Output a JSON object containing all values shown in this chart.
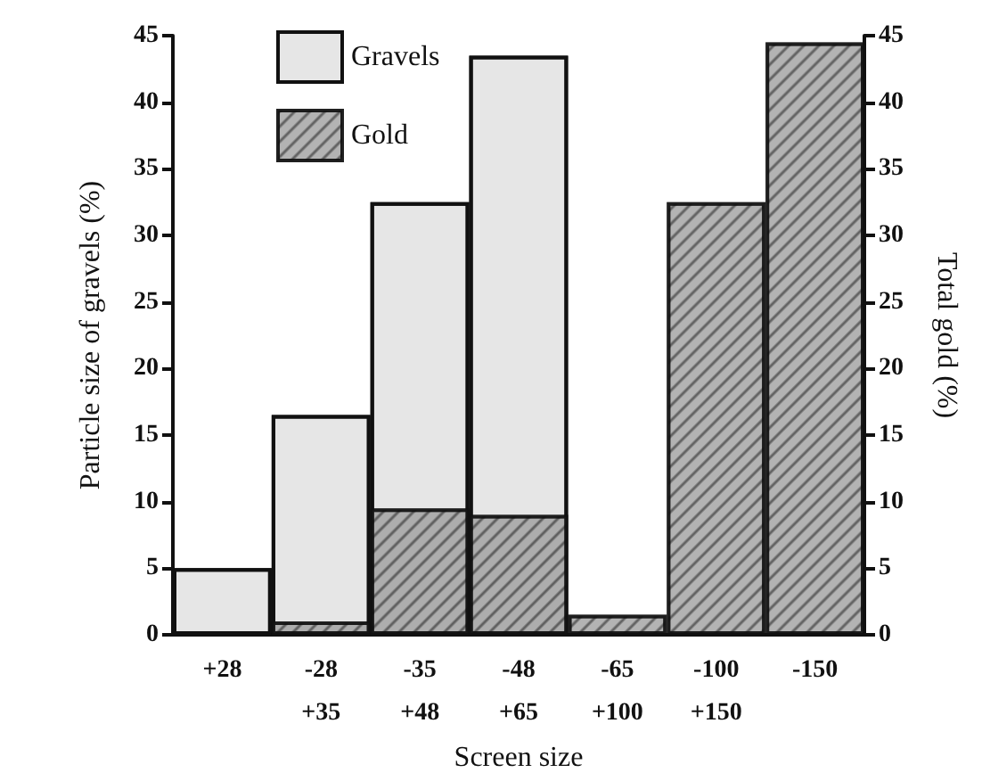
{
  "chart_data": {
    "type": "bar",
    "xlabel": "Screen size",
    "ylabel": "Particle size of gravels (%)",
    "y2label": "Total gold (%)",
    "categories": [
      "+28",
      "-28\n+35",
      "-35\n+48",
      "-48\n+65",
      "-65\n+100",
      "-100\n+150",
      "-150"
    ],
    "series": [
      {
        "name": "Gravels",
        "color": "#e6e6e6",
        "values": [
          5,
          16.5,
          32.5,
          43.5,
          null,
          null,
          null
        ]
      },
      {
        "name": "Gold",
        "color": "#9a9a9a",
        "axis": "y2",
        "values": [
          null,
          1,
          9.5,
          9,
          1.5,
          32.5,
          44.5
        ]
      }
    ],
    "ylim": [
      0,
      45
    ],
    "yticks": [
      0,
      5,
      10,
      15,
      20,
      25,
      30,
      35,
      40,
      45
    ],
    "y2lim": [
      0,
      45
    ],
    "y2ticks": [
      0,
      5,
      10,
      15,
      20,
      25,
      30,
      35,
      40,
      45
    ],
    "grid": false,
    "legend": "top left"
  }
}
